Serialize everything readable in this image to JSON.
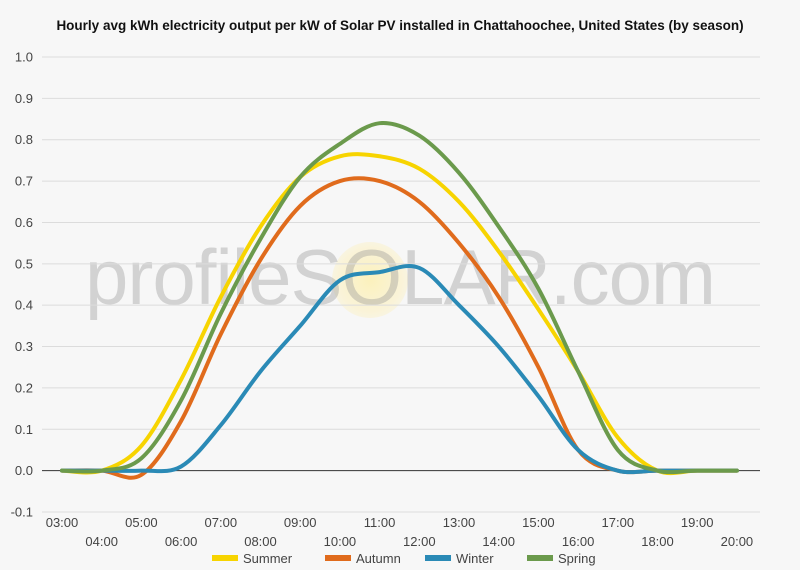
{
  "chart_data": {
    "type": "line",
    "title": "Hourly avg kWh electricity output per kW of Solar PV installed in Chattahoochee, United States (by season)",
    "xlabel": "",
    "ylabel": "",
    "x": [
      "03:00",
      "04:00",
      "05:00",
      "06:00",
      "07:00",
      "08:00",
      "09:00",
      "10:00",
      "11:00",
      "12:00",
      "13:00",
      "14:00",
      "15:00",
      "16:00",
      "17:00",
      "18:00",
      "19:00",
      "20:00"
    ],
    "ylim": [
      -0.1,
      1.0
    ],
    "yticks": [
      "-0.1",
      "0.0",
      "0.1",
      "0.2",
      "0.3",
      "0.4",
      "0.5",
      "0.6",
      "0.7",
      "0.8",
      "0.9",
      "1.0"
    ],
    "grid": true,
    "legend_position": "bottom",
    "series": [
      {
        "name": "Summer",
        "color": "#f7d400",
        "values": [
          0.0,
          0.0,
          0.06,
          0.22,
          0.42,
          0.59,
          0.71,
          0.76,
          0.76,
          0.73,
          0.65,
          0.53,
          0.39,
          0.24,
          0.08,
          0.0,
          0.0,
          0.0
        ]
      },
      {
        "name": "Autumn",
        "color": "#e06b1c",
        "values": [
          0.0,
          0.0,
          -0.01,
          0.12,
          0.33,
          0.51,
          0.64,
          0.7,
          0.7,
          0.65,
          0.55,
          0.42,
          0.25,
          0.05,
          0.0,
          0.0,
          0.0,
          0.0
        ]
      },
      {
        "name": "Winter",
        "color": "#2a8ab6",
        "values": [
          0.0,
          0.0,
          0.0,
          0.01,
          0.11,
          0.24,
          0.35,
          0.46,
          0.48,
          0.49,
          0.4,
          0.3,
          0.18,
          0.05,
          0.0,
          0.0,
          0.0,
          0.0
        ]
      },
      {
        "name": "Spring",
        "color": "#6b9a4c",
        "values": [
          0.0,
          0.0,
          0.03,
          0.17,
          0.38,
          0.56,
          0.71,
          0.79,
          0.84,
          0.81,
          0.72,
          0.59,
          0.44,
          0.24,
          0.05,
          0.0,
          0.0,
          0.0
        ]
      }
    ]
  },
  "watermark": {
    "text": "profileSOLAR.com"
  }
}
